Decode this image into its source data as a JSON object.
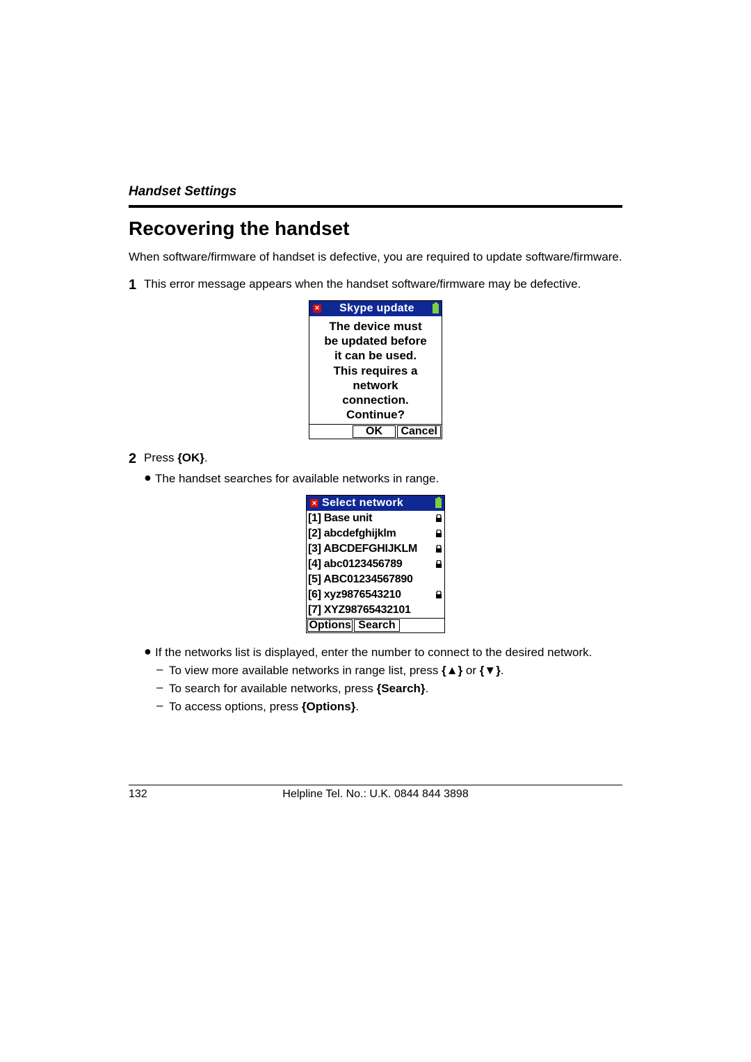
{
  "header": {
    "section": "Handset Settings"
  },
  "title": "Recovering the handset",
  "intro": "When software/firmware of handset is defective, you are required to update software/firmware.",
  "step1": {
    "num": "1",
    "text": "This error message appears when the handset software/firmware may be defective."
  },
  "screen1": {
    "title": "Skype update",
    "lines": [
      "The device must",
      "be updated before",
      "it can be used.",
      "This requires a",
      "network",
      "connection.",
      "Continue?"
    ],
    "sk_left": "",
    "sk_mid": "OK",
    "sk_right": "Cancel"
  },
  "step2": {
    "num": "2",
    "text_pre": "Press ",
    "text_key": "{OK}",
    "text_post": ".",
    "bullet": "The handset searches for available networks in range."
  },
  "screen2": {
    "title": "Select network",
    "rows": [
      {
        "label": "[1] Base unit",
        "lock": true
      },
      {
        "label": "[2] abcdefghijklm",
        "lock": true
      },
      {
        "label": "[3] ABCDEFGHIJKLM",
        "lock": true
      },
      {
        "label": "[4] abc0123456789",
        "lock": true
      },
      {
        "label": "[5] ABC01234567890",
        "lock": false
      },
      {
        "label": "[6] xyz9876543210",
        "lock": true
      },
      {
        "label": "[7] XYZ98765432101",
        "lock": false
      }
    ],
    "sk_left": "Options",
    "sk_mid": "Search",
    "sk_right": ""
  },
  "after": {
    "bullet": "If the networks list is displayed, enter the number to connect to the desired network.",
    "sub1_pre": "To view more available networks in range list, press ",
    "sub1_k1": "{▲}",
    "sub1_mid": " or ",
    "sub1_k2": "{▼}",
    "sub1_post": ".",
    "sub2_pre": "To search for available networks, press ",
    "sub2_k": "{Search}",
    "sub2_post": ".",
    "sub3_pre": "To access options, press ",
    "sub3_k": "{Options}",
    "sub3_post": "."
  },
  "footer": {
    "page": "132",
    "helpline": "Helpline Tel. No.: U.K. 0844 844 3898"
  }
}
